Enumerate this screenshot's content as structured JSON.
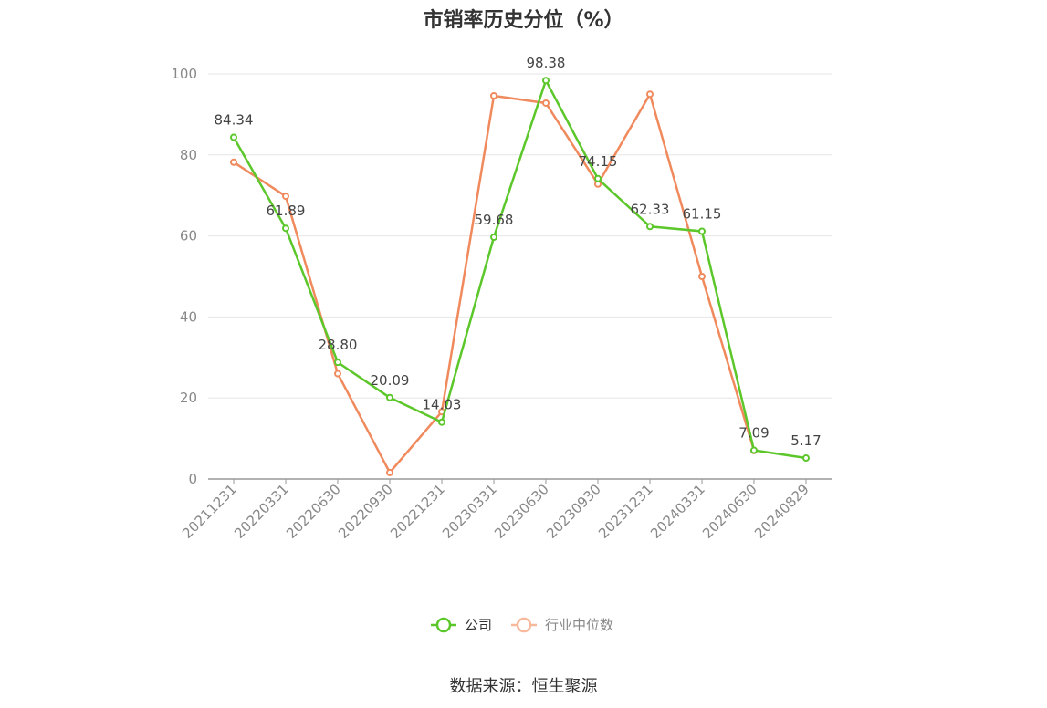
{
  "chart_data": {
    "type": "line",
    "title": "市销率历史分位（%）",
    "categories": [
      "20211231",
      "20220331",
      "20220630",
      "20220930",
      "20221231",
      "20230331",
      "20230630",
      "20230930",
      "20231231",
      "20240331",
      "20240630",
      "20240829"
    ],
    "series": [
      {
        "name": "公司",
        "color": "#5cc72b",
        "values": [
          84.34,
          61.89,
          28.8,
          20.09,
          14.03,
          59.68,
          98.38,
          74.15,
          62.33,
          61.15,
          7.09,
          5.17
        ],
        "data_labels": [
          "84.34",
          "61.89",
          "28.80",
          "20.09",
          "14.03",
          "59.68",
          "98.38",
          "74.15",
          "62.33",
          "61.15",
          "7.09",
          "5.17"
        ]
      },
      {
        "name": "行业中位数",
        "color": "#f08a5d",
        "legend_color": "#f7b89c",
        "values": [
          78.2,
          69.8,
          26.0,
          1.6,
          16.6,
          94.6,
          92.8,
          72.8,
          95.0,
          50.0,
          7.0,
          null
        ]
      }
    ],
    "ylim": [
      0,
      100
    ],
    "yticks": [
      "0",
      "20",
      "40",
      "60",
      "80",
      "100"
    ],
    "grid": true,
    "legend_position": "bottom-center"
  },
  "source_text": "数据来源：恒生聚源"
}
